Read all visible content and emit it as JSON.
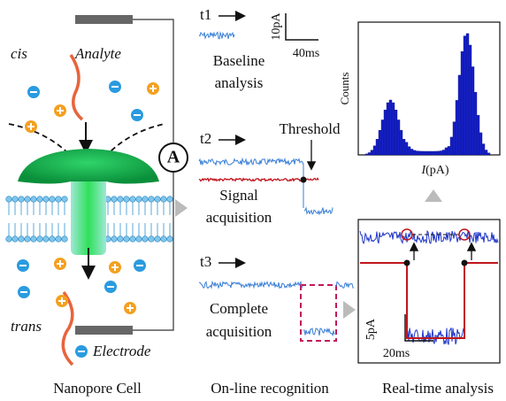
{
  "left_panel": {
    "cis": "cis",
    "analyte": "Analyte",
    "ammeter": "A",
    "trans": "trans",
    "electrode": "Electrode",
    "caption": "Nanopore Cell"
  },
  "middle_panel": {
    "steps": [
      {
        "time": "t1",
        "label": [
          "Baseline",
          "analysis"
        ]
      },
      {
        "time": "t2",
        "label": [
          "Signal",
          "acquisition"
        ]
      },
      {
        "time": "t3",
        "label": [
          "Complete",
          "acquisition"
        ]
      }
    ],
    "scale_bar": {
      "current": "10pA",
      "time": "40ms"
    },
    "threshold": "Threshold",
    "caption": "On-line recognition"
  },
  "right_panel": {
    "histogram": {
      "y_label": "Counts",
      "x_label_symbol": "I",
      "x_label_unit": "(pA)"
    },
    "scale_bar": {
      "current": "5pA",
      "time": "20ms"
    },
    "caption": "Real-time analysis"
  }
}
